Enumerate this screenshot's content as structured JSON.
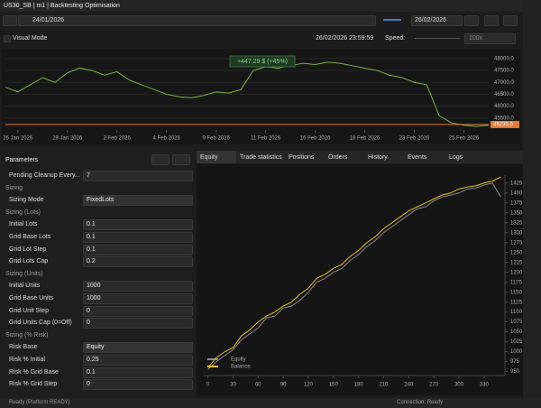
{
  "header": {
    "title": "US30_SB | m1 | Backtesting Optimisation"
  },
  "toolbar": {
    "start_date": "24/01/2026",
    "end_date": "26/02/2026",
    "visual_mode": "Visual Mode",
    "current_time": "26/02/2026 23:59:59",
    "speed_label": "Speed:",
    "speed_value": "100x"
  },
  "price_chart": {
    "type": "line",
    "annotation": "+447.29 $ (+45%)",
    "color": "#7cb342",
    "values": [
      46800,
      46600,
      46900,
      47200,
      47000,
      47400,
      47600,
      47500,
      47300,
      47450,
      47100,
      46900,
      46700,
      46500,
      46400,
      46350,
      46450,
      46600,
      46550,
      46700,
      47500,
      47650,
      47600,
      47700,
      47800,
      47750,
      47850,
      47800,
      47700,
      47600,
      47500,
      47300,
      47200,
      47000,
      46900,
      45600,
      45300,
      45200,
      45150,
      45200
    ],
    "xlim": [
      0,
      39
    ],
    "ylim": [
      45000,
      48300
    ],
    "yticks": [
      {
        "value": 48000,
        "label": "48000.0"
      },
      {
        "value": 47500,
        "label": "47500.0"
      },
      {
        "value": 47000,
        "label": "47000.0"
      },
      {
        "value": 46500,
        "label": "46500.0"
      },
      {
        "value": 46000,
        "label": "46000.0"
      },
      {
        "value": 45500,
        "label": "45500.0"
      }
    ],
    "xticks": [
      {
        "value": 1,
        "label": "26 Jan 2026"
      },
      {
        "value": 5,
        "label": "28 Jan 2026"
      },
      {
        "value": 9,
        "label": "2 Feb 2026"
      },
      {
        "value": 13,
        "label": "4 Feb 2026"
      },
      {
        "value": 17,
        "label": "9 Feb 2026"
      },
      {
        "value": 21,
        "label": "11 Feb 2026"
      },
      {
        "value": 25,
        "label": "16 Feb 2026"
      },
      {
        "value": 29,
        "label": "18 Feb 2026"
      },
      {
        "value": 33,
        "label": "23 Feb 2026"
      },
      {
        "value": 37,
        "label": "25 Feb 2026"
      }
    ],
    "price_line": {
      "value": 45230,
      "label": "45230.0",
      "color": "#e07b39"
    }
  },
  "parameters": {
    "title": "Parameters",
    "rows": [
      {
        "label": "Pending Cleanup Every...",
        "value": "7"
      },
      {
        "section": "Sizing"
      },
      {
        "label": "Sizing Mode",
        "value": "FixedLots",
        "select": true
      },
      {
        "section": "Sizing (Lots)"
      },
      {
        "label": "Initial Lots",
        "value": "0.1"
      },
      {
        "label": "Grid Base Lots",
        "value": "0.1"
      },
      {
        "label": "Grid Lot Step",
        "value": "0.1"
      },
      {
        "label": "Grid Lots Cap",
        "value": "0.2"
      },
      {
        "section": "Sizing (Units)"
      },
      {
        "label": "Initial Units",
        "value": "1000"
      },
      {
        "label": "Grid Base Units",
        "value": "1000"
      },
      {
        "label": "Grid Unit Step",
        "value": "0"
      },
      {
        "label": "Grid Units Cap (0=Off)",
        "value": "0"
      },
      {
        "section": "Sizing (% Risk)"
      },
      {
        "label": "Risk Base",
        "value": "Equity",
        "select": true
      },
      {
        "label": "Risk % Initial",
        "value": "0.25"
      },
      {
        "label": "Risk % Grid Base",
        "value": "0.1"
      },
      {
        "label": "Risk % Grid Step",
        "value": "0"
      }
    ]
  },
  "tabs": [
    "Equity",
    "Trade statistics",
    "Positions",
    "Orders",
    "History",
    "Events",
    "Logs"
  ],
  "chart_data": {
    "type": "line",
    "x": [
      0,
      10,
      20,
      30,
      40,
      50,
      60,
      70,
      80,
      90,
      100,
      110,
      120,
      130,
      140,
      150,
      160,
      170,
      180,
      190,
      200,
      210,
      220,
      230,
      240,
      250,
      260,
      270,
      280,
      290,
      300,
      310,
      320,
      330,
      340,
      350
    ],
    "series": [
      {
        "name": "Equity",
        "color": "#8a8a8a",
        "values": [
          955,
          975,
          990,
          1005,
          1030,
          1045,
          1060,
          1085,
          1090,
          1110,
          1115,
          1130,
          1150,
          1175,
          1185,
          1200,
          1210,
          1230,
          1245,
          1265,
          1280,
          1300,
          1315,
          1330,
          1345,
          1360,
          1365,
          1380,
          1390,
          1395,
          1400,
          1410,
          1412,
          1420,
          1425,
          1390
        ]
      },
      {
        "name": "Balance",
        "color": "#e8c12f",
        "values": [
          960,
          985,
          1000,
          1010,
          1040,
          1055,
          1075,
          1090,
          1100,
          1115,
          1125,
          1145,
          1160,
          1185,
          1195,
          1210,
          1220,
          1240,
          1255,
          1275,
          1290,
          1310,
          1325,
          1340,
          1355,
          1365,
          1375,
          1385,
          1395,
          1400,
          1410,
          1415,
          1418,
          1425,
          1430,
          1440
        ]
      }
    ],
    "xlim": [
      -5,
      355
    ],
    "ylim": [
      940,
      1445
    ],
    "xticks": [
      0,
      30,
      60,
      90,
      120,
      150,
      180,
      210,
      240,
      270,
      300,
      330
    ],
    "yticks": [
      950,
      975,
      1000,
      1025,
      1050,
      1075,
      1100,
      1125,
      1150,
      1175,
      1200,
      1225,
      1250,
      1275,
      1300,
      1325,
      1350,
      1375,
      1400,
      1425
    ]
  },
  "status": {
    "left": "Ready (Platform READY)",
    "right": "Connection: Ready"
  }
}
